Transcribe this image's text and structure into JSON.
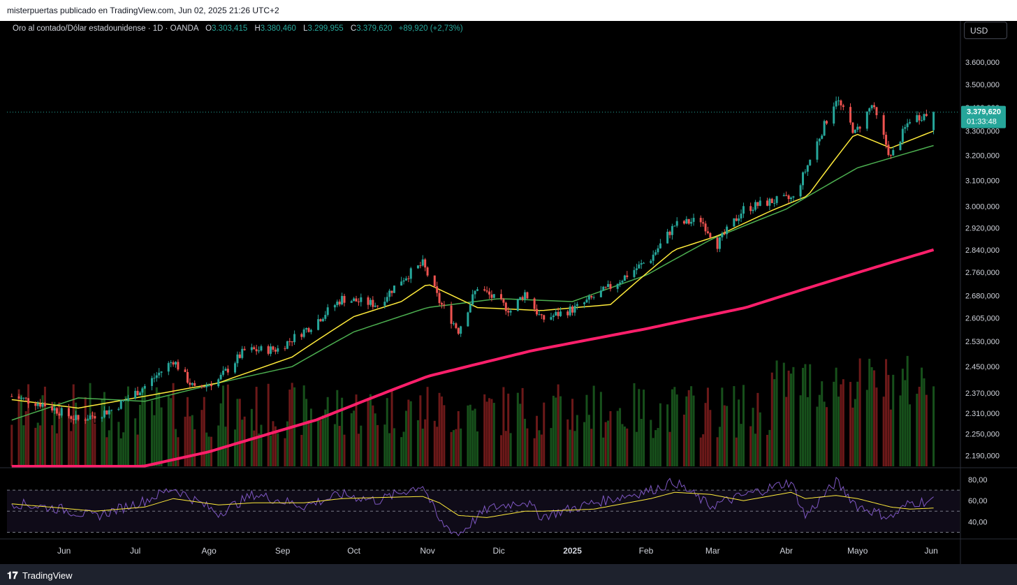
{
  "header": {
    "published": "misterpuertas publicado en TradingView.com, Jun 02, 2025 21:26 UTC+2"
  },
  "legend": {
    "symbol": "Oro al contado/Dólar estadounidense · 1D · OANDA",
    "open_label": "O",
    "open": "3.303,415",
    "high_label": "H",
    "high": "3.380,460",
    "low_label": "L",
    "low": "3.299,955",
    "close_label": "C",
    "close": "3.379,620",
    "change": "+89,920 (+2,73%)"
  },
  "currency_button": "USD",
  "price_badge": {
    "price": "3.379,620",
    "countdown": "01:33:48"
  },
  "footer": {
    "brand": "TradingView"
  },
  "colors": {
    "up": "#26a69a",
    "down": "#ef5350",
    "ma_blue": "#2962ff",
    "ma_yellow": "#ffeb3b",
    "ma_green": "#4caf50",
    "ma_pink": "#ff1f6b",
    "rsi": "#7e57c2",
    "rsi_ma": "#ffeb3b"
  },
  "chart_data": {
    "type": "line",
    "title": "Oro al contado/Dólar estadounidense · 1D · OANDA",
    "y_ticks": [
      "3.600,000",
      "3.500,000",
      "3.400,000",
      "3.300,000",
      "3.200,000",
      "3.100,000",
      "3.000,000",
      "2.920,000",
      "2.840,000",
      "2.760,000",
      "2.680,000",
      "2.605,000",
      "2.530,000",
      "2.450,000",
      "2.370,000",
      "2.310,000",
      "2.250,000",
      "2.190,000"
    ],
    "y_scale": "log",
    "ylim": [
      2160,
      3700
    ],
    "x_ticks": [
      "Jun",
      "Jul",
      "Ago",
      "Sep",
      "Oct",
      "Nov",
      "Dic",
      "2025",
      "Feb",
      "Mar",
      "Abr",
      "Mayo",
      "Jun"
    ],
    "x_tick_dates": [
      "2024-06-01",
      "2024-07-01",
      "2024-08-01",
      "2024-09-01",
      "2024-10-01",
      "2024-11-01",
      "2024-12-01",
      "2025-01-01",
      "2025-02-01",
      "2025-03-01",
      "2025-04-01",
      "2025-05-01",
      "2025-06-01"
    ],
    "xlim": [
      "2024-05-08",
      "2025-06-13"
    ],
    "price_series": {
      "dates": [
        "2024-05-10",
        "2024-05-24",
        "2024-06-07",
        "2024-06-21",
        "2024-07-05",
        "2024-07-17",
        "2024-07-26",
        "2024-08-05",
        "2024-08-16",
        "2024-08-30",
        "2024-09-13",
        "2024-09-26",
        "2024-10-11",
        "2024-10-21",
        "2024-10-30",
        "2024-11-06",
        "2024-11-14",
        "2024-11-22",
        "2024-12-06",
        "2024-12-12",
        "2024-12-19",
        "2025-01-03",
        "2025-01-17",
        "2025-02-03",
        "2025-02-13",
        "2025-02-24",
        "2025-03-03",
        "2025-03-14",
        "2025-03-26",
        "2025-04-04",
        "2025-04-10",
        "2025-04-22",
        "2025-04-30",
        "2025-05-07",
        "2025-05-15",
        "2025-05-23",
        "2025-06-02"
      ],
      "values": [
        2360,
        2335,
        2290,
        2320,
        2390,
        2470,
        2380,
        2410,
        2500,
        2505,
        2580,
        2670,
        2650,
        2735,
        2790,
        2660,
        2565,
        2710,
        2630,
        2690,
        2600,
        2640,
        2710,
        2810,
        2930,
        2950,
        2860,
        2990,
        3020,
        3030,
        3160,
        3440,
        3290,
        3410,
        3190,
        3350,
        3379.62
      ]
    },
    "ma_20": {
      "dates": [
        "2024-05-10",
        "2024-06-07",
        "2024-07-05",
        "2024-08-05",
        "2024-09-05",
        "2024-10-01",
        "2024-10-21",
        "2024-11-01",
        "2024-11-22",
        "2024-12-19",
        "2025-01-17",
        "2025-02-13",
        "2025-03-03",
        "2025-03-26",
        "2025-04-10",
        "2025-04-30",
        "2025-05-15",
        "2025-06-02"
      ],
      "values": [
        2350,
        2325,
        2360,
        2400,
        2480,
        2610,
        2660,
        2720,
        2640,
        2630,
        2650,
        2840,
        2890,
        2985,
        3040,
        3290,
        3230,
        3300
      ]
    },
    "ma_50": {
      "dates": [
        "2024-05-10",
        "2024-06-07",
        "2024-07-05",
        "2024-08-05",
        "2024-09-05",
        "2024-10-01",
        "2024-11-01",
        "2024-12-01",
        "2025-01-01",
        "2025-02-01",
        "2025-03-01",
        "2025-04-01",
        "2025-05-01",
        "2025-06-02"
      ],
      "values": [
        2290,
        2355,
        2345,
        2400,
        2450,
        2560,
        2640,
        2670,
        2660,
        2750,
        2880,
        2990,
        3150,
        3240
      ]
    },
    "ma_200": {
      "dates": [
        "2024-05-10",
        "2024-08-01",
        "2024-09-15",
        "2024-11-01",
        "2024-12-15",
        "2025-02-01",
        "2025-03-15",
        "2025-06-02"
      ],
      "values": [
        2080,
        2200,
        2290,
        2420,
        2500,
        2570,
        2640,
        2840
      ]
    },
    "current_price": 3379.62,
    "rsi": {
      "y_ticks": [
        "80,00",
        "60,00",
        "40,00"
      ],
      "ylim": [
        25,
        90
      ],
      "levels": [
        70,
        50,
        30
      ],
      "dates": [
        "2024-05-10",
        "2024-05-31",
        "2024-06-14",
        "2024-07-05",
        "2024-07-17",
        "2024-08-05",
        "2024-08-20",
        "2024-09-10",
        "2024-09-26",
        "2024-10-11",
        "2024-10-30",
        "2024-11-06",
        "2024-11-14",
        "2024-11-26",
        "2024-12-12",
        "2024-12-19",
        "2025-01-10",
        "2025-02-03",
        "2025-02-13",
        "2025-02-28",
        "2025-03-14",
        "2025-04-03",
        "2025-04-09",
        "2025-04-22",
        "2025-05-01",
        "2025-05-15",
        "2025-05-23",
        "2025-06-02"
      ],
      "values": [
        58,
        52,
        45,
        60,
        72,
        48,
        66,
        55,
        66,
        60,
        75,
        40,
        28,
        52,
        60,
        45,
        58,
        70,
        78,
        55,
        65,
        78,
        45,
        78,
        55,
        44,
        58,
        60
      ],
      "ma_values": [
        57,
        53,
        50,
        54,
        62,
        56,
        58,
        58,
        62,
        63,
        64,
        58,
        46,
        44,
        50,
        50,
        52,
        62,
        68,
        66,
        60,
        68,
        62,
        65,
        62,
        54,
        52,
        53
      ]
    }
  }
}
